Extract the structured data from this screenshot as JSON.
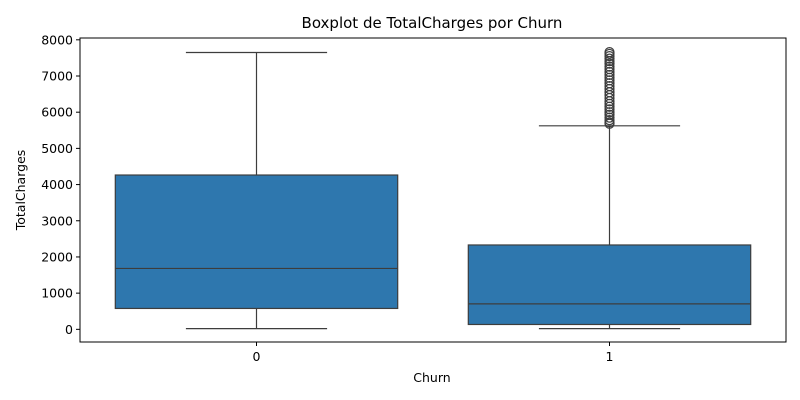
{
  "chart_data": {
    "type": "boxplot",
    "title": "Boxplot de TotalCharges por Churn",
    "xlabel": "Churn",
    "ylabel": "TotalCharges",
    "categories": [
      "0",
      "1"
    ],
    "ylim": [
      -350,
      8050
    ],
    "yticks": [
      0,
      1000,
      2000,
      3000,
      4000,
      5000,
      6000,
      7000,
      8000
    ],
    "ytick_labels": [
      "0",
      "1000",
      "2000",
      "3000",
      "4000",
      "5000",
      "6000",
      "7000",
      "8000"
    ],
    "grid": false,
    "legend": "none",
    "box_color": "#2e77ae",
    "line_color": "#3d3d3d",
    "boxes": [
      {
        "category": "0",
        "whisker_low": 19,
        "q1": 577,
        "median": 1683,
        "q3": 4264,
        "whisker_high": 7650,
        "outliers": []
      },
      {
        "category": "1",
        "whisker_low": 19,
        "q1": 134,
        "median": 704,
        "q3": 2331,
        "whisker_high": 5624,
        "outliers": [
          5680,
          5720,
          5780,
          5850,
          5930,
          6000,
          6080,
          6150,
          6230,
          6300,
          6390,
          6470,
          6550,
          6640,
          6720,
          6800,
          6880,
          6950,
          7030,
          7110,
          7190,
          7260,
          7340,
          7410,
          7480,
          7550,
          7610,
          7660
        ]
      }
    ]
  }
}
